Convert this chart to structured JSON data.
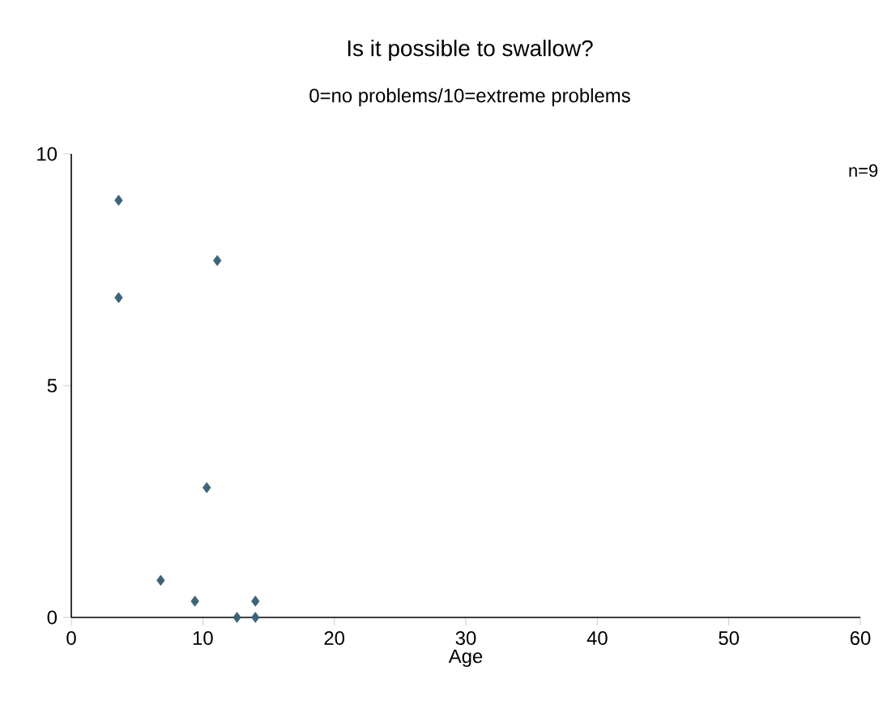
{
  "chart_data": {
    "type": "scatter",
    "title": "Is it possible to swallow?",
    "subtitle": "0=no problems/10=extreme problems",
    "xlabel": "Age",
    "annotations": [
      "n=9"
    ],
    "x": [
      3.6,
      3.6,
      11.1,
      10.3,
      6.8,
      9.4,
      12.6,
      14.0,
      14.0
    ],
    "values": [
      9.0,
      6.9,
      7.7,
      2.8,
      0.8,
      0.35,
      0,
      0,
      0.35
    ],
    "color": "#3d6478",
    "marker": "diamond",
    "xlim": [
      0,
      60
    ],
    "xticks": [
      0,
      10,
      20,
      30,
      40,
      50,
      60
    ],
    "ylim": [
      0,
      10
    ],
    "yticks": [
      0,
      5,
      10
    ]
  }
}
